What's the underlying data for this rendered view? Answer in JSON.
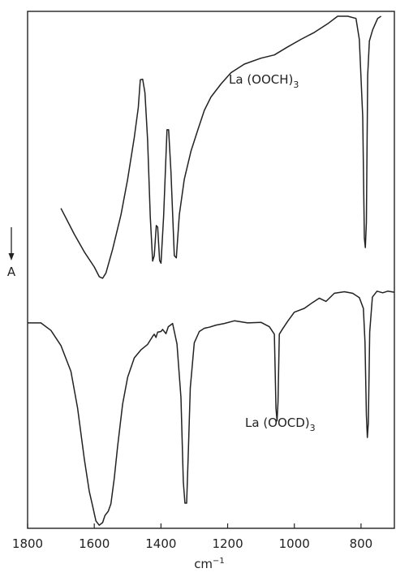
{
  "chart_data": {
    "type": "line",
    "xlabel": "cm",
    "xlabel_superscript": "−1",
    "x_ticks": [
      1800,
      1600,
      1400,
      1200,
      1000,
      800
    ],
    "xlim": [
      1800,
      700
    ],
    "x_reversed": true,
    "y_arrow_label": "A",
    "y_arrow_direction": "down",
    "y_units": "relative absorbance (increasing downward, arbitrary scale)",
    "grid": false,
    "series": [
      {
        "name": "La (OOCH)",
        "name_subscript": "3",
        "points": [
          [
            1700,
            0.357
          ],
          [
            1660,
            0.405
          ],
          [
            1630,
            0.438
          ],
          [
            1600,
            0.466
          ],
          [
            1585,
            0.484
          ],
          [
            1575,
            0.487
          ],
          [
            1565,
            0.477
          ],
          [
            1545,
            0.433
          ],
          [
            1520,
            0.369
          ],
          [
            1500,
            0.303
          ],
          [
            1480,
            0.225
          ],
          [
            1468,
            0.17
          ],
          [
            1462,
            0.118
          ],
          [
            1455,
            0.117
          ],
          [
            1448,
            0.142
          ],
          [
            1440,
            0.23
          ],
          [
            1432,
            0.373
          ],
          [
            1425,
            0.455
          ],
          [
            1420,
            0.445
          ],
          [
            1414,
            0.389
          ],
          [
            1410,
            0.392
          ],
          [
            1404,
            0.454
          ],
          [
            1400,
            0.459
          ],
          [
            1392,
            0.373
          ],
          [
            1382,
            0.211
          ],
          [
            1377,
            0.211
          ],
          [
            1370,
            0.29
          ],
          [
            1360,
            0.445
          ],
          [
            1354,
            0.449
          ],
          [
            1345,
            0.369
          ],
          [
            1330,
            0.303
          ],
          [
            1310,
            0.251
          ],
          [
            1290,
            0.212
          ],
          [
            1270,
            0.175
          ],
          [
            1250,
            0.15
          ],
          [
            1220,
            0.126
          ],
          [
            1190,
            0.105
          ],
          [
            1150,
            0.089
          ],
          [
            1100,
            0.078
          ],
          [
            1060,
            0.072
          ],
          [
            1020,
            0.057
          ],
          [
            980,
            0.043
          ],
          [
            940,
            0.03
          ],
          [
            900,
            0.014
          ],
          [
            870,
            0.0
          ],
          [
            840,
            0.0
          ],
          [
            815,
            0.004
          ],
          [
            805,
            0.043
          ],
          [
            795,
            0.187
          ],
          [
            790,
            0.412
          ],
          [
            787,
            0.43
          ],
          [
            784,
            0.384
          ],
          [
            780,
            0.11
          ],
          [
            775,
            0.046
          ],
          [
            765,
            0.025
          ],
          [
            750,
            0.004
          ],
          [
            740,
            0.0
          ]
        ]
      },
      {
        "name": "La (OOCD)",
        "name_subscript": "3",
        "points": [
          [
            1800,
            0.57
          ],
          [
            1760,
            0.57
          ],
          [
            1730,
            0.584
          ],
          [
            1700,
            0.612
          ],
          [
            1670,
            0.66
          ],
          [
            1650,
            0.728
          ],
          [
            1630,
            0.823
          ],
          [
            1615,
            0.883
          ],
          [
            1605,
            0.91
          ],
          [
            1595,
            0.938
          ],
          [
            1585,
            0.946
          ],
          [
            1575,
            0.941
          ],
          [
            1568,
            0.928
          ],
          [
            1558,
            0.92
          ],
          [
            1550,
            0.906
          ],
          [
            1540,
            0.859
          ],
          [
            1530,
            0.8
          ],
          [
            1515,
            0.721
          ],
          [
            1500,
            0.671
          ],
          [
            1480,
            0.635
          ],
          [
            1460,
            0.62
          ],
          [
            1440,
            0.61
          ],
          [
            1425,
            0.595
          ],
          [
            1420,
            0.591
          ],
          [
            1415,
            0.597
          ],
          [
            1410,
            0.587
          ],
          [
            1400,
            0.586
          ],
          [
            1395,
            0.582
          ],
          [
            1385,
            0.59
          ],
          [
            1378,
            0.577
          ],
          [
            1365,
            0.571
          ],
          [
            1352,
            0.609
          ],
          [
            1340,
            0.709
          ],
          [
            1333,
            0.865
          ],
          [
            1328,
            0.905
          ],
          [
            1323,
            0.905
          ],
          [
            1318,
            0.809
          ],
          [
            1312,
            0.691
          ],
          [
            1300,
            0.607
          ],
          [
            1285,
            0.586
          ],
          [
            1270,
            0.58
          ],
          [
            1255,
            0.578
          ],
          [
            1235,
            0.574
          ],
          [
            1210,
            0.571
          ],
          [
            1180,
            0.566
          ],
          [
            1140,
            0.57
          ],
          [
            1100,
            0.569
          ],
          [
            1075,
            0.577
          ],
          [
            1060,
            0.591
          ],
          [
            1055,
            0.729
          ],
          [
            1052,
            0.752
          ],
          [
            1049,
            0.717
          ],
          [
            1045,
            0.591
          ],
          [
            1035,
            0.581
          ],
          [
            1020,
            0.567
          ],
          [
            1000,
            0.55
          ],
          [
            970,
            0.543
          ],
          [
            945,
            0.532
          ],
          [
            925,
            0.524
          ],
          [
            905,
            0.53
          ],
          [
            880,
            0.515
          ],
          [
            850,
            0.512
          ],
          [
            825,
            0.515
          ],
          [
            805,
            0.523
          ],
          [
            793,
            0.543
          ],
          [
            788,
            0.606
          ],
          [
            784,
            0.741
          ],
          [
            781,
            0.783
          ],
          [
            778,
            0.756
          ],
          [
            774,
            0.587
          ],
          [
            766,
            0.522
          ],
          [
            752,
            0.511
          ],
          [
            735,
            0.514
          ],
          [
            720,
            0.511
          ],
          [
            700,
            0.513
          ]
        ]
      }
    ]
  }
}
